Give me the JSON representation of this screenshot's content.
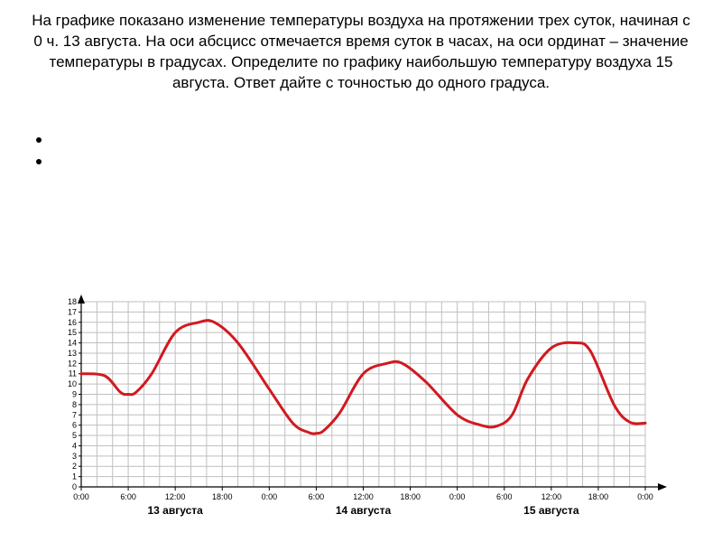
{
  "title_text": "На графике показано изменение температуры воздуха на протяжении трех суток, начиная с 0 ч. 13 августа. На оси абсцисс отмечается время суток в часах, на оси ординат – значение температуры в градусах. Определите по графику наибольшую температуру воздуха 15 августа. Ответ дайте с точностью до одного градуса.",
  "chart": {
    "type": "line",
    "background_color": "#ffffff",
    "grid_color": "#bfbfbf",
    "curve_color": "#d11920",
    "curve_width": 3,
    "axis_color": "#000000",
    "y": {
      "min": 0,
      "max": 18,
      "ticks": [
        0,
        1,
        2,
        3,
        4,
        5,
        6,
        7,
        8,
        9,
        10,
        11,
        12,
        13,
        14,
        15,
        16,
        17,
        18
      ]
    },
    "x": {
      "hours_total": 72,
      "tick_step_hours": 6,
      "tick_labels": [
        "0:00",
        "6:00",
        "12:00",
        "18:00",
        "0:00",
        "6:00",
        "12:00",
        "18:00",
        "0:00",
        "6:00",
        "12:00",
        "18:00",
        "0:00"
      ],
      "minor_count_between": 2
    },
    "day_labels": [
      "13 августа",
      "14 августа",
      "15 августа"
    ],
    "points": [
      [
        0,
        11
      ],
      [
        3,
        10.8
      ],
      [
        5,
        9.2
      ],
      [
        6,
        9
      ],
      [
        7,
        9.2
      ],
      [
        9,
        11
      ],
      [
        12,
        15
      ],
      [
        15,
        16
      ],
      [
        17,
        16
      ],
      [
        20,
        14
      ],
      [
        24,
        9.5
      ],
      [
        27,
        6.2
      ],
      [
        29,
        5.3
      ],
      [
        30,
        5.2
      ],
      [
        31,
        5.5
      ],
      [
        33,
        7.2
      ],
      [
        36,
        11
      ],
      [
        39,
        12
      ],
      [
        41,
        12
      ],
      [
        44,
        10.2
      ],
      [
        48,
        7
      ],
      [
        51,
        6
      ],
      [
        53,
        5.9
      ],
      [
        55,
        7
      ],
      [
        57,
        10.5
      ],
      [
        60,
        13.5
      ],
      [
        63,
        14
      ],
      [
        65,
        13.2
      ],
      [
        68,
        8
      ],
      [
        70,
        6.3
      ],
      [
        72,
        6.2
      ]
    ],
    "label_fontsize": 9,
    "date_fontsize": 12
  }
}
